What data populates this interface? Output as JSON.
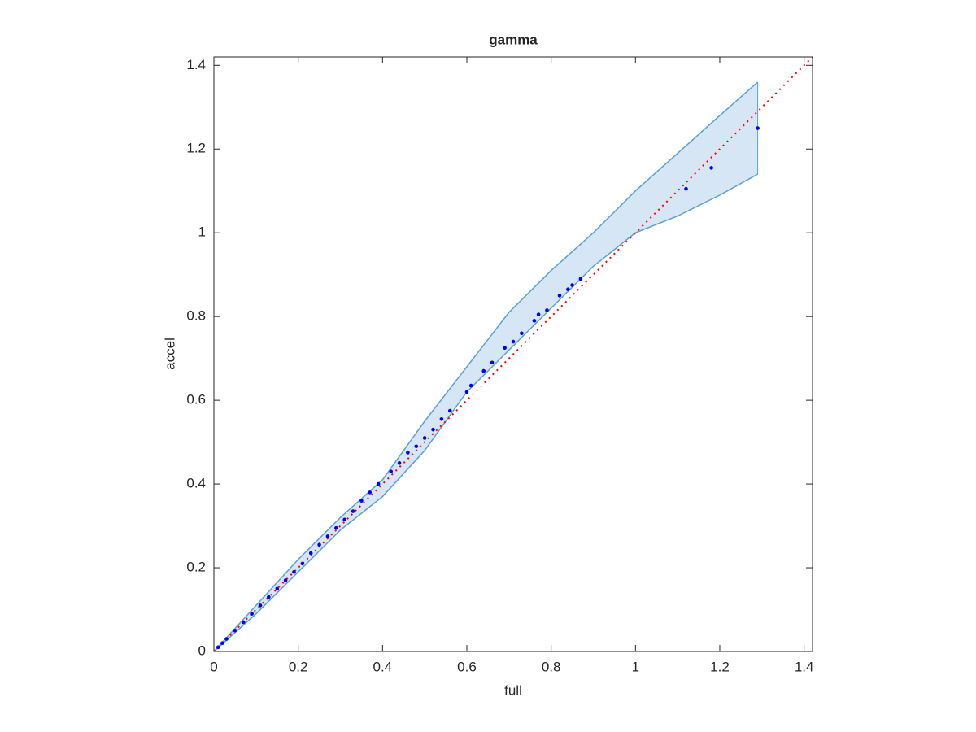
{
  "chart_data": {
    "type": "scatter",
    "title": "gamma",
    "x_label": "full",
    "y_label": "accel",
    "xlim": [
      0,
      1.42
    ],
    "ylim": [
      0,
      1.42
    ],
    "xticks": [
      0,
      0.2,
      0.4,
      0.6,
      0.8,
      1,
      1.2,
      1.4
    ],
    "yticks": [
      0,
      0.2,
      0.4,
      0.6,
      0.8,
      1,
      1.2,
      1.4
    ],
    "series": [
      {
        "type": "band",
        "color": "#5aa0d6",
        "fill": "#d6e6f4",
        "x": [
          0,
          0.1,
          0.2,
          0.3,
          0.4,
          0.5,
          0.6,
          0.7,
          0.8,
          0.9,
          1.0,
          1.1,
          1.2,
          1.29
        ],
        "upper": [
          0,
          0.11,
          0.22,
          0.32,
          0.41,
          0.55,
          0.68,
          0.81,
          0.91,
          1.0,
          1.1,
          1.19,
          1.28,
          1.36
        ],
        "lower": [
          0,
          0.09,
          0.19,
          0.29,
          0.37,
          0.48,
          0.62,
          0.72,
          0.82,
          0.92,
          1.0,
          1.04,
          1.09,
          1.14
        ]
      },
      {
        "type": "line",
        "color": "#ff0000",
        "dash": "dotted",
        "x": [
          0,
          1.42
        ],
        "values": [
          0,
          1.42
        ]
      },
      {
        "type": "scatter",
        "color": "#0000ff",
        "x": [
          0.01,
          0.02,
          0.03,
          0.05,
          0.07,
          0.09,
          0.11,
          0.13,
          0.15,
          0.17,
          0.19,
          0.21,
          0.23,
          0.25,
          0.27,
          0.29,
          0.31,
          0.33,
          0.35,
          0.37,
          0.39,
          0.42,
          0.44,
          0.46,
          0.48,
          0.5,
          0.52,
          0.54,
          0.56,
          0.6,
          0.61,
          0.64,
          0.66,
          0.69,
          0.71,
          0.73,
          0.76,
          0.77,
          0.79,
          0.82,
          0.84,
          0.85,
          0.87,
          1.12,
          1.18,
          1.29
        ],
        "values": [
          0.01,
          0.02,
          0.03,
          0.05,
          0.07,
          0.09,
          0.11,
          0.13,
          0.15,
          0.17,
          0.19,
          0.21,
          0.235,
          0.255,
          0.275,
          0.295,
          0.315,
          0.335,
          0.36,
          0.38,
          0.4,
          0.43,
          0.45,
          0.475,
          0.49,
          0.51,
          0.53,
          0.555,
          0.575,
          0.62,
          0.635,
          0.67,
          0.69,
          0.725,
          0.74,
          0.76,
          0.79,
          0.805,
          0.815,
          0.85,
          0.865,
          0.875,
          0.89,
          1.105,
          1.155,
          1.25
        ]
      }
    ]
  }
}
